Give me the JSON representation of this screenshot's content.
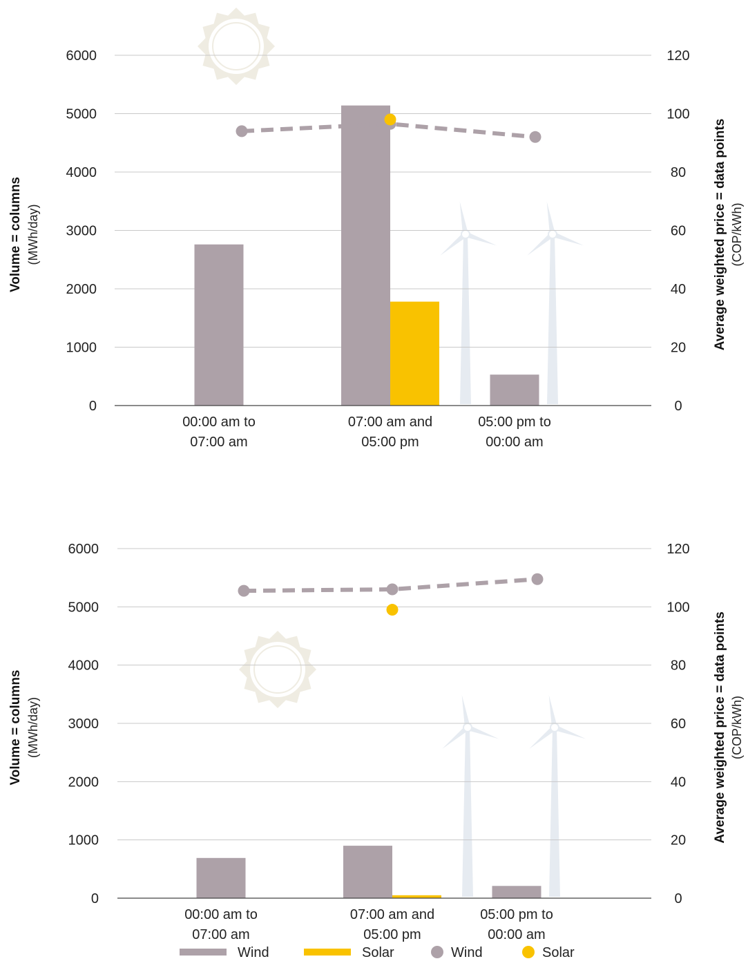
{
  "colors": {
    "wind": "#ada1a8",
    "solar": "#f9c200",
    "grid": "#c8c8c8",
    "axis": "#444444",
    "deco_sun": "#efece2",
    "deco_turbine": "#e6ebf1"
  },
  "icons": [
    "sun-icon",
    "wind-turbine-icon"
  ],
  "chart_data": [
    {
      "type": "bar",
      "title": "",
      "categories": [
        [
          "00:00 am to",
          "07:00 am"
        ],
        [
          "07:00 am and",
          "05:00 pm"
        ],
        [
          "05:00 pm to",
          "00:00 am"
        ]
      ],
      "left_axis": {
        "label": "Volume = columns",
        "unit": "(MWh/day)",
        "range": [
          0,
          6000
        ],
        "ticks": [
          "0",
          "1000",
          "2000",
          "3000",
          "4000",
          "5000",
          "6000"
        ]
      },
      "right_axis": {
        "label": "Average weighted price = data points",
        "unit": "(COP/kWh)",
        "range": [
          0,
          120
        ],
        "ticks": [
          "0",
          "20",
          "40",
          "60",
          "80",
          "100",
          "120"
        ]
      },
      "bar_series": [
        {
          "name": "Wind",
          "values": [
            2760,
            5140,
            530
          ]
        },
        {
          "name": "Solar",
          "values": [
            null,
            1780,
            null
          ]
        }
      ],
      "point_series": [
        {
          "name": "Wind",
          "values": [
            94,
            96.5,
            92
          ],
          "dashed_line": true
        },
        {
          "name": "Solar",
          "values": [
            null,
            98,
            null
          ]
        }
      ],
      "grid": true
    },
    {
      "type": "bar",
      "title": "",
      "categories": [
        [
          "00:00 am to",
          "07:00 am"
        ],
        [
          "07:00 am and",
          "05:00 pm"
        ],
        [
          "05:00 pm to",
          "00:00 am"
        ]
      ],
      "left_axis": {
        "label": "Volume = columns",
        "unit": "(MWh/day)",
        "range": [
          0,
          6000
        ],
        "ticks": [
          "0",
          "1000",
          "2000",
          "3000",
          "4000",
          "5000",
          "6000"
        ]
      },
      "right_axis": {
        "label": "Average weighted price = data points",
        "unit": "(COP/kWh)",
        "range": [
          0,
          120
        ],
        "ticks": [
          "0",
          "20",
          "40",
          "60",
          "80",
          "100",
          "120"
        ]
      },
      "bar_series": [
        {
          "name": "Wind",
          "values": [
            690,
            900,
            210
          ]
        },
        {
          "name": "Solar",
          "values": [
            null,
            50,
            null
          ]
        }
      ],
      "point_series": [
        {
          "name": "Wind",
          "values": [
            105.5,
            106,
            109.5
          ],
          "dashed_line": true
        },
        {
          "name": "Solar",
          "values": [
            null,
            99,
            null
          ]
        }
      ],
      "grid": true
    }
  ],
  "legend": {
    "placement": "bottom",
    "items": [
      {
        "label": "Wind",
        "marker": "bar",
        "series": "wind"
      },
      {
        "label": "Solar",
        "marker": "bar",
        "series": "solar"
      },
      {
        "label": "Wind",
        "marker": "dot",
        "series": "wind"
      },
      {
        "label": "Solar",
        "marker": "dot",
        "series": "solar"
      }
    ]
  }
}
